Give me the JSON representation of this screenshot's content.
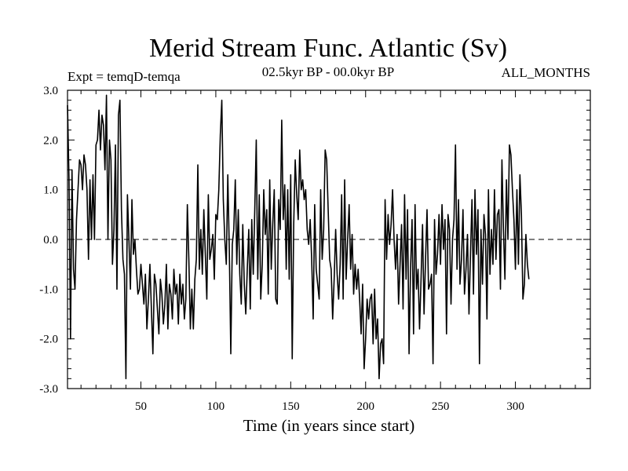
{
  "chart_data": {
    "type": "line",
    "title": "Merid Stream Func. Atlantic (Sv)",
    "subtitle_left": "Expt = temqD-temqa",
    "subtitle_center": "02.5kyr BP - 00.0kyr BP",
    "subtitle_right": "ALL_MONTHS",
    "xlabel": "Time (in years since start)",
    "ylabel": "",
    "xlim": [
      1,
      350
    ],
    "ylim": [
      -3.0,
      3.0
    ],
    "x_ticks": [
      50,
      100,
      150,
      200,
      250,
      300
    ],
    "y_ticks": [
      -3.0,
      -2.0,
      -1.0,
      0.0,
      1.0,
      2.0,
      3.0
    ],
    "y_tick_labels": [
      "-3.0",
      "-2.0",
      "-1.0",
      "0.0",
      "1.0",
      "2.0",
      "3.0"
    ],
    "zero_line": "dashed",
    "series": [
      {
        "name": "Merid Stream Func. Atlantic",
        "x_start": 1,
        "x_step": 1,
        "values": [
          2.7,
          1.2,
          -2.0,
          1.4,
          -0.6,
          -1.0,
          0.4,
          1.0,
          1.6,
          1.5,
          1.0,
          1.7,
          1.5,
          1.0,
          -0.4,
          1.2,
          0.0,
          1.3,
          0.0,
          1.9,
          2.0,
          2.6,
          1.8,
          2.5,
          2.3,
          1.4,
          2.9,
          0.0,
          2.0,
          1.6,
          -0.5,
          0.2,
          1.9,
          -1.0,
          2.5,
          2.8,
          0.6,
          -0.4,
          -0.7,
          -2.8,
          0.9,
          0.0,
          -1.0,
          0.8,
          -0.3,
          0.0,
          -0.6,
          -1.1,
          -1.0,
          -0.5,
          -0.9,
          -1.3,
          -0.7,
          -1.8,
          -1.2,
          -0.5,
          -1.4,
          -2.3,
          -0.7,
          -0.9,
          -1.4,
          -1.9,
          -0.8,
          -1.1,
          -1.7,
          -1.3,
          -0.5,
          -1.8,
          -0.9,
          -1.1,
          -1.6,
          -0.6,
          -1.1,
          -0.9,
          -1.7,
          -0.7,
          -1.3,
          -0.9,
          -1.6,
          -1.2,
          0.7,
          -0.4,
          -1.8,
          -1.0,
          -1.8,
          -0.8,
          -0.4,
          1.5,
          -0.6,
          0.2,
          -0.7,
          0.6,
          -0.3,
          -1.2,
          0.9,
          -0.4,
          -0.2,
          0.1,
          -0.8,
          0.5,
          0.4,
          1.0,
          2.1,
          2.8,
          0.8,
          0.0,
          -0.5,
          1.3,
          -0.2,
          -2.3,
          -0.1,
          0.2,
          1.2,
          -0.5,
          0.6,
          -0.7,
          -1.3,
          0.3,
          -0.9,
          -1.5,
          -0.6,
          0.2,
          -1.4,
          0.4,
          -0.7,
          0.6,
          2.0,
          -0.8,
          0.9,
          -1.2,
          -0.5,
          1.0,
          0.1,
          0.6,
          -1.1,
          1.2,
          -0.6,
          0.3,
          1.0,
          -1.2,
          -1.3,
          0.8,
          0.2,
          2.4,
          0.4,
          1.1,
          -0.6,
          1.0,
          -0.8,
          1.3,
          -2.4,
          0.3,
          1.6,
          0.9,
          0.4,
          1.8,
          1.0,
          1.2,
          0.8,
          1.0,
          0.2,
          -0.1,
          0.4,
          -0.4,
          -1.6,
          0.7,
          -0.6,
          -0.9,
          -1.2,
          1.0,
          -0.4,
          0.2,
          1.8,
          1.6,
          0.6,
          -0.4,
          -0.6,
          -1.6,
          -0.8,
          0.2,
          -0.7,
          -1.2,
          -0.5,
          0.9,
          -1.2,
          1.2,
          -0.8,
          0.0,
          0.7,
          -0.6,
          0.1,
          -1.1,
          -0.5,
          -1.0,
          -0.6,
          -1.2,
          -1.9,
          -0.9,
          -2.6,
          -2.0,
          -1.2,
          -1.6,
          -1.2,
          -1.1,
          -2.1,
          -1.0,
          -2.0,
          -1.6,
          -2.8,
          -2.1,
          -2.0,
          -2.5,
          0.8,
          -0.4,
          0.5,
          -0.1,
          0.3,
          1.0,
          0.0,
          -0.6,
          0.1,
          -1.3,
          -0.5,
          0.3,
          -1.4,
          0.9,
          -0.8,
          0.6,
          -2.3,
          -0.6,
          0.4,
          -1.9,
          0.7,
          -1.0,
          -0.6,
          -1.8,
          -0.8,
          0.3,
          -1.5,
          -0.4,
          0.6,
          -1.0,
          -0.9,
          -0.7,
          -2.5,
          0.4,
          -0.7,
          -0.3,
          0.5,
          -0.5,
          0.7,
          -0.2,
          0.4,
          -1.9,
          0.5,
          0.2,
          -1.3,
          0.0,
          0.4,
          1.9,
          -0.6,
          0.8,
          -0.9,
          -0.4,
          0.6,
          -1.1,
          -0.6,
          0.1,
          -1.5,
          -0.3,
          0.8,
          -1.1,
          1.0,
          -0.3,
          0.6,
          -2.5,
          0.2,
          -0.9,
          0.5,
          0.1,
          -1.6,
          1.0,
          -0.7,
          0.2,
          -0.5,
          1.0,
          -0.4,
          0.5,
          0.6,
          -1.0,
          1.6,
          0.2,
          -0.8,
          1.2,
          0.0,
          1.9,
          1.7,
          1.0,
          0.4,
          -0.6,
          1.0,
          -0.5,
          1.3,
          0.5,
          -1.2,
          -0.9,
          0.1,
          -0.5,
          -0.8
        ]
      }
    ]
  }
}
